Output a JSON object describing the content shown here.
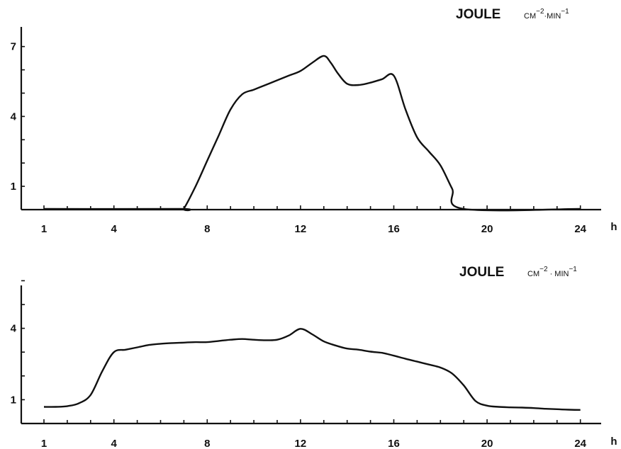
{
  "chart_data": [
    {
      "type": "line",
      "ylabel_main": "JOULE",
      "ylabel_units": "CM−2·MIN−1",
      "xunit": "h",
      "xlim": [
        0,
        24.8
      ],
      "ylim": [
        0,
        7.7
      ],
      "x_ticks": [
        1,
        4,
        8,
        12,
        16,
        20,
        24
      ],
      "y_ticks": [
        1,
        4,
        7
      ],
      "x": [
        1,
        6.8,
        7,
        7.5,
        8,
        8.5,
        9,
        9.5,
        10,
        10.5,
        11,
        11.5,
        12,
        12.5,
        13,
        13.3,
        13.6,
        14,
        14.5,
        15,
        15.5,
        16,
        16.5,
        17,
        17.5,
        18,
        18.5,
        19,
        24
      ],
      "y": [
        0.03,
        0.03,
        0.05,
        1.0,
        2.1,
        3.2,
        4.3,
        4.95,
        5.15,
        5.35,
        5.55,
        5.75,
        5.95,
        6.3,
        6.6,
        6.3,
        5.85,
        5.4,
        5.35,
        5.45,
        5.6,
        5.75,
        4.3,
        3.1,
        2.5,
        1.9,
        0.9,
        0.03,
        0.03
      ],
      "series": [
        {
          "values_note": ""
        }
      ]
    },
    {
      "type": "line",
      "ylabel_main": "JOULE",
      "ylabel_units": "CM−2 · MIN−1",
      "xunit": "h",
      "xlim": [
        0,
        24.8
      ],
      "ylim": [
        0,
        6.2
      ],
      "x_ticks": [
        1,
        4,
        8,
        12,
        16,
        20,
        24
      ],
      "y_ticks": [
        1,
        4
      ],
      "x": [
        1,
        1.5,
        2,
        2.5,
        3,
        3.5,
        4,
        4.5,
        5,
        5.5,
        6,
        6.5,
        7,
        7.5,
        8,
        8.5,
        9,
        9.5,
        10,
        10.5,
        11,
        11.5,
        12,
        12.5,
        13,
        13.5,
        14,
        14.5,
        15,
        15.5,
        16,
        16.5,
        17,
        17.5,
        18,
        18.5,
        19,
        19.5,
        20,
        20.5,
        21,
        21.5,
        22,
        22.5,
        23,
        23.5,
        24
      ],
      "y": [
        0.7,
        0.7,
        0.73,
        0.85,
        1.2,
        2.2,
        3.0,
        3.1,
        3.2,
        3.3,
        3.35,
        3.38,
        3.4,
        3.42,
        3.42,
        3.47,
        3.52,
        3.55,
        3.52,
        3.5,
        3.52,
        3.7,
        3.98,
        3.75,
        3.45,
        3.28,
        3.15,
        3.1,
        3.02,
        2.97,
        2.85,
        2.72,
        2.6,
        2.48,
        2.35,
        2.1,
        1.6,
        0.95,
        0.75,
        0.7,
        0.68,
        0.67,
        0.65,
        0.62,
        0.6,
        0.58,
        0.57
      ]
    }
  ]
}
